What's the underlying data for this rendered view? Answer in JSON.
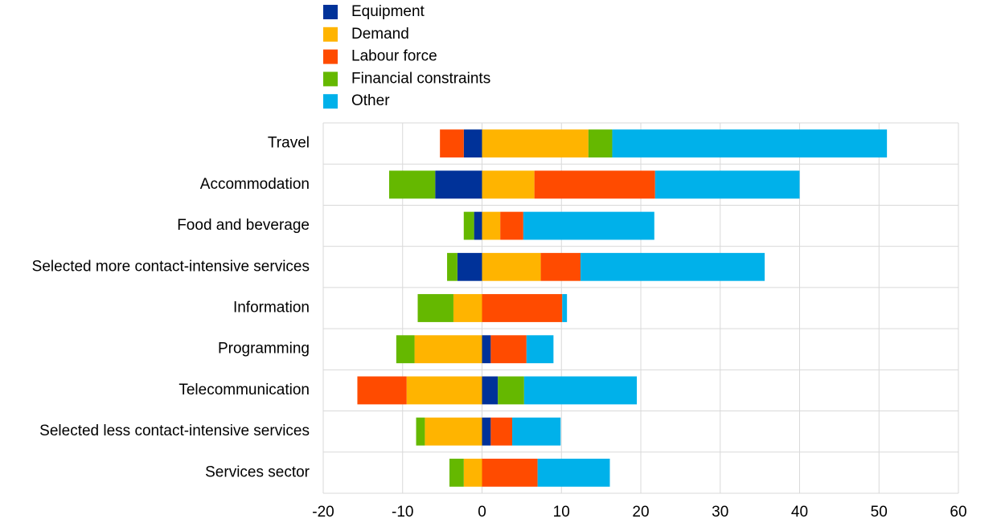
{
  "chart_data": {
    "type": "diverging-stacked-bar",
    "categories": [
      "Travel",
      "Accommodation",
      "Food and beverage",
      "Selected more contact-intensive services",
      "Information",
      "Programming",
      "Telecommunication",
      "Selected less contact-intensive services",
      "Services sector"
    ],
    "series": [
      {
        "name": "Equipment",
        "color": "#003299",
        "values": [
          -2.3,
          -5.9,
          -1.0,
          -3.1,
          0,
          1.1,
          2.0,
          1.1,
          0
        ]
      },
      {
        "name": "Demand",
        "color": "#ffb400",
        "values": [
          13.4,
          6.6,
          2.3,
          7.4,
          -3.6,
          -8.5,
          -9.5,
          -7.2,
          -2.3
        ]
      },
      {
        "name": "Labour force",
        "color": "#ff4b00",
        "values": [
          -3.0,
          15.2,
          2.9,
          5.0,
          10.1,
          4.5,
          -6.2,
          2.7,
          7.0
        ]
      },
      {
        "name": "Financial constraints",
        "color": "#65b800",
        "values": [
          3.0,
          -5.8,
          -1.3,
          -1.3,
          -4.5,
          -2.3,
          3.3,
          -1.1,
          -1.8
        ]
      },
      {
        "name": "Other",
        "color": "#00b1ea",
        "values": [
          34.6,
          18.2,
          16.5,
          23.2,
          0.6,
          3.4,
          14.2,
          6.1,
          9.1
        ]
      }
    ],
    "xlim": [
      -20,
      60
    ],
    "xticks": [
      -20,
      -10,
      0,
      10,
      20,
      30,
      40,
      50,
      60
    ],
    "grid": true
  }
}
